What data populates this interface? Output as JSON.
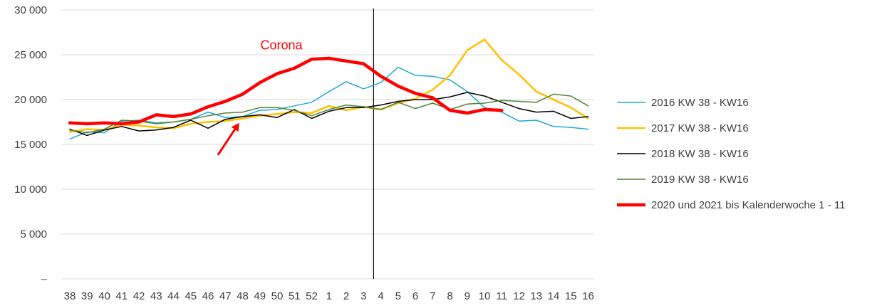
{
  "chart_data": {
    "type": "line",
    "categories": [
      "38",
      "39",
      "40",
      "41",
      "42",
      "43",
      "44",
      "45",
      "46",
      "47",
      "48",
      "49",
      "50",
      "51",
      "52",
      "1",
      "2",
      "3",
      "4",
      "5",
      "6",
      "7",
      "8",
      "9",
      "10",
      "11",
      "12",
      "13",
      "14",
      "15",
      "16"
    ],
    "y_tick_labels": [
      "–",
      "5 000",
      "10 000",
      "15 000",
      "20 000",
      "25 000",
      "30 000"
    ],
    "y_ticks": [
      0,
      5000,
      10000,
      15000,
      20000,
      25000,
      30000
    ],
    "ylim": [
      0,
      30000
    ],
    "grid": "horizontal",
    "legend_position": "right",
    "annotation": {
      "text": "Corona",
      "x_category": "50",
      "y": 25600
    },
    "divider_between": [
      "3",
      "4"
    ],
    "arrow": {
      "from": {
        "x": 8.6,
        "y": 13900
      },
      "to": {
        "x": 9.8,
        "y": 17400
      },
      "color": "#ff0000"
    },
    "series": [
      {
        "name": "2016 KW 38 - KW16",
        "color": "#1ea8d8",
        "width": 1.5,
        "values": [
          15600,
          16400,
          16300,
          17600,
          17700,
          17400,
          17500,
          17800,
          18600,
          18000,
          18100,
          18800,
          18900,
          19300,
          19700,
          20900,
          22000,
          21200,
          21900,
          23600,
          22700,
          22600,
          22200,
          20900,
          19100,
          18600,
          17600,
          17700,
          17000,
          16900,
          16700
        ]
      },
      {
        "name": "2017 KW 38 - KW16",
        "color": "#ffc000",
        "width": 2.5,
        "values": [
          16400,
          16700,
          16600,
          17200,
          17100,
          16900,
          16800,
          17300,
          17500,
          17600,
          17900,
          18200,
          18400,
          18600,
          18500,
          19300,
          18800,
          19200,
          18900,
          19600,
          20100,
          21100,
          22700,
          25500,
          26700,
          24400,
          22800,
          20900,
          20000,
          19100,
          17900
        ]
      },
      {
        "name": "2018 KW 38 - KW16",
        "color": "#000000",
        "width": 1.5,
        "values": [
          16700,
          16000,
          16600,
          17000,
          16500,
          16600,
          16900,
          17700,
          16800,
          17800,
          18100,
          18300,
          18000,
          18900,
          17900,
          18700,
          19100,
          19100,
          19400,
          19800,
          20000,
          20000,
          20300,
          20800,
          20400,
          19700,
          19000,
          18600,
          18700,
          17900,
          18100
        ]
      },
      {
        "name": "2019 KW 38 - KW16",
        "color": "#548235",
        "width": 1.5,
        "values": [
          16600,
          16300,
          16700,
          17700,
          17600,
          17300,
          17500,
          17800,
          18200,
          18500,
          18600,
          19100,
          19100,
          18800,
          18200,
          18900,
          19400,
          19200,
          18900,
          19700,
          19000,
          19600,
          18900,
          19500,
          19600,
          19900,
          19800,
          19700,
          20600,
          20400,
          19300
        ]
      },
      {
        "name": "2020 und 2021 bis Kalenderwoche 1 - 11",
        "color": "#ff0000",
        "width": 4.5,
        "values": [
          17400,
          17300,
          17400,
          17300,
          17500,
          18300,
          18100,
          18400,
          19200,
          19800,
          20600,
          21900,
          22900,
          23500,
          24500,
          24600,
          24300,
          24000,
          22600,
          21500,
          20700,
          20200,
          18800,
          18500,
          18900,
          18800,
          null,
          null,
          null,
          null,
          null
        ]
      }
    ]
  }
}
